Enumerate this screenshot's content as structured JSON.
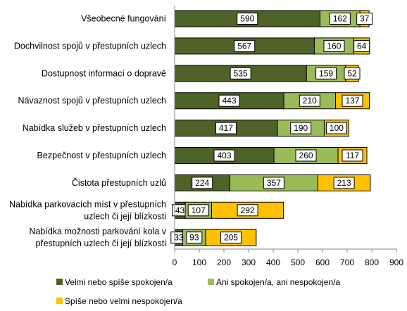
{
  "chart_data": {
    "type": "bar",
    "orientation": "horizontal",
    "stacked": true,
    "categories": [
      [
        "Všeobecné fungování"
      ],
      [
        "Dochvilnost spojů v přestupních uzlech"
      ],
      [
        "Dostupnost informací o dopravě"
      ],
      [
        "Návaznost spojů v přestupních uzlech"
      ],
      [
        "Nabídka služeb v přestupních uzlech"
      ],
      [
        "Bezpečnost v přestupních uzlech"
      ],
      [
        "Čistota přestupních uzlů"
      ],
      [
        "Nabídka parkovacích míst v přestupních",
        "uzlech či její blízkosti"
      ],
      [
        "Nabídka možnosti parkování kola v",
        "přestupních uzlech či její blízkosti"
      ]
    ],
    "series": [
      {
        "name": "Velmi nebo spíše spokojen/a",
        "color": "#4f6228",
        "values": [
          590,
          567,
          535,
          443,
          417,
          403,
          224,
          43,
          33
        ]
      },
      {
        "name": "Ani spokojen/a, ani nespokojen/a",
        "color": "#9bbb59",
        "values": [
          162,
          160,
          159,
          210,
          190,
          260,
          357,
          107,
          93
        ]
      },
      {
        "name": "Spíše nebo velmi nespokojen/a",
        "color": "#ffc000",
        "values": [
          37,
          64,
          52,
          137,
          100,
          117,
          213,
          292,
          205
        ]
      }
    ],
    "xlim": [
      0,
      900
    ],
    "xticks": [
      0,
      100,
      200,
      300,
      400,
      500,
      600,
      700,
      800,
      900
    ],
    "grid": false,
    "legend_position": "bottom"
  }
}
